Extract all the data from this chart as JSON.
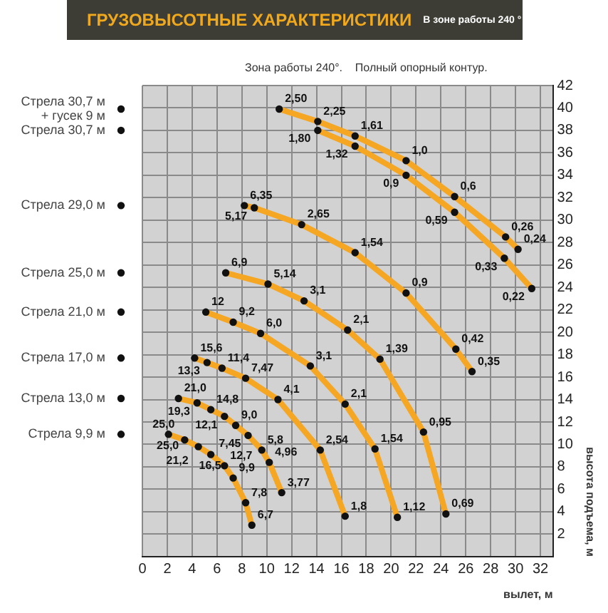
{
  "chart_data": {
    "type": "line",
    "title": "ГРУЗОВЫСОТНЫЕ ХАРАКТЕРИСТИКИ",
    "subtitle": "В зоне работы 240 °",
    "xlabel": "вылет, м",
    "ylabel": "высота подъема, м",
    "annotations": [
      "Зона работы 240°.    Полный опорный контур.",
      {
        "text": "2,50",
        "x": 11.0,
        "y": 39.9
      },
      {
        "text": "2,25",
        "x": 14.1,
        "y": 38.8
      },
      {
        "text": "1,61",
        "x": 17.1,
        "y": 37.5
      },
      {
        "text": "1,0",
        "x": 21.2,
        "y": 35.3
      },
      {
        "text": "0,6",
        "x": 25.1,
        "y": 32.1
      },
      {
        "text": "0,26",
        "x": 29.2,
        "y": 28.5
      },
      {
        "text": "0,24",
        "x": 30.2,
        "y": 27.4
      },
      {
        "text": "1,80",
        "x": 14.1,
        "y": 38.0
      },
      {
        "text": "1,32",
        "x": 17.1,
        "y": 36.6
      },
      {
        "text": "0,9",
        "x": 21.2,
        "y": 34.0
      },
      {
        "text": "0,59",
        "x": 25.1,
        "y": 30.7
      },
      {
        "text": "0,33",
        "x": 29.1,
        "y": 26.6
      },
      {
        "text": "0,22",
        "x": 31.3,
        "y": 23.9
      },
      {
        "text": "6,35",
        "x": 8.2,
        "y": 31.3
      },
      {
        "text": "5,17",
        "x": 9.0,
        "y": 31.1
      },
      {
        "text": "2,65",
        "x": 12.8,
        "y": 29.6
      },
      {
        "text": "1,54",
        "x": 17.1,
        "y": 27.1
      },
      {
        "text": "0,9",
        "x": 21.2,
        "y": 23.5
      },
      {
        "text": "0,42",
        "x": 25.2,
        "y": 18.5
      },
      {
        "text": "0,35",
        "x": 26.5,
        "y": 16.5
      },
      {
        "text": "6,9",
        "x": 6.7,
        "y": 25.3
      },
      {
        "text": "5,14",
        "x": 10.1,
        "y": 24.3
      },
      {
        "text": "3,1",
        "x": 13.0,
        "y": 22.8
      },
      {
        "text": "2,1",
        "x": 16.5,
        "y": 20.2
      },
      {
        "text": "1,39",
        "x": 19.1,
        "y": 17.6
      },
      {
        "text": "0,95",
        "x": 22.6,
        "y": 11.1
      },
      {
        "text": "0,69",
        "x": 24.4,
        "y": 3.8
      },
      {
        "text": "12",
        "x": 5.1,
        "y": 21.8
      },
      {
        "text": "9,2",
        "x": 7.3,
        "y": 20.9
      },
      {
        "text": "6,0",
        "x": 9.5,
        "y": 19.9
      },
      {
        "text": "3,1",
        "x": 13.5,
        "y": 17.0
      },
      {
        "text": "2,1",
        "x": 16.3,
        "y": 13.6
      },
      {
        "text": "1,54",
        "x": 18.7,
        "y": 9.6
      },
      {
        "text": "1,12",
        "x": 20.5,
        "y": 3.5
      },
      {
        "text": "15,6",
        "x": 4.2,
        "y": 17.7
      },
      {
        "text": "13,3",
        "x": 5.2,
        "y": 17.3
      },
      {
        "text": "11,4",
        "x": 6.4,
        "y": 16.8
      },
      {
        "text": "7,47",
        "x": 8.3,
        "y": 15.9
      },
      {
        "text": "4,1",
        "x": 10.9,
        "y": 14.0
      },
      {
        "text": "2,54",
        "x": 14.3,
        "y": 9.5
      },
      {
        "text": "1,8",
        "x": 16.3,
        "y": 3.6
      },
      {
        "text": "21,0",
        "x": 2.9,
        "y": 14.1
      },
      {
        "text": "19,3",
        "x": 4.4,
        "y": 13.7
      },
      {
        "text": "14,8",
        "x": 5.5,
        "y": 13.1
      },
      {
        "text": "12,1",
        "x": 6.6,
        "y": 12.5
      },
      {
        "text": "9,0",
        "x": 7.5,
        "y": 11.7
      },
      {
        "text": "7,45",
        "x": 8.5,
        "y": 10.8
      },
      {
        "text": "5,8",
        "x": 9.6,
        "y": 9.5
      },
      {
        "text": "4,96",
        "x": 10.2,
        "y": 8.4
      },
      {
        "text": "3,77",
        "x": 11.2,
        "y": 5.7
      },
      {
        "text": "25,0",
        "x": 2.1,
        "y": 10.9
      },
      {
        "text": "25,0",
        "x": 3.4,
        "y": 10.4
      },
      {
        "text": "21,2",
        "x": 4.5,
        "y": 9.8
      },
      {
        "text": "16,5",
        "x": 5.5,
        "y": 9.1
      },
      {
        "text": "12,7",
        "x": 6.6,
        "y": 8.1
      },
      {
        "text": "9,9",
        "x": 7.3,
        "y": 7.0
      },
      {
        "text": "7,8",
        "x": 8.3,
        "y": 4.8
      },
      {
        "text": "6,7",
        "x": 8.8,
        "y": 2.8
      }
    ],
    "xlim": [
      0,
      33
    ],
    "ylim": [
      0,
      42
    ],
    "xticks": [
      0,
      2,
      4,
      6,
      8,
      10,
      12,
      14,
      16,
      18,
      20,
      22,
      24,
      26,
      28,
      30,
      32
    ],
    "yticks": [
      2,
      4,
      6,
      8,
      10,
      12,
      14,
      16,
      18,
      20,
      22,
      24,
      26,
      28,
      30,
      32,
      34,
      36,
      38,
      40,
      42
    ],
    "grid": true,
    "legend": "left",
    "marker": "circle",
    "line_style": "solid",
    "series": [
      {
        "name": "Стрела 30,7 м + гусек 9 м",
        "color": "#f5a623",
        "x": [
          11.0,
          14.1,
          17.1,
          21.2,
          25.1,
          29.2,
          30.2
        ],
        "values": [
          39.9,
          38.8,
          37.5,
          35.3,
          32.1,
          28.5,
          27.4
        ]
      },
      {
        "name": "Стрела 30,7 м",
        "color": "#f5a623",
        "x": [
          14.1,
          17.1,
          21.2,
          25.1,
          29.1,
          31.3
        ],
        "values": [
          38.0,
          36.6,
          34.0,
          30.7,
          26.6,
          23.9
        ]
      },
      {
        "name": "Стрела 29,0 м",
        "color": "#f5a623",
        "x": [
          8.2,
          9.0,
          12.8,
          17.1,
          21.2,
          25.2,
          26.5
        ],
        "values": [
          31.3,
          31.1,
          29.6,
          27.1,
          23.5,
          18.5,
          16.5
        ]
      },
      {
        "name": "Стрела 25,0 м",
        "color": "#f5a623",
        "x": [
          6.7,
          10.1,
          13.0,
          16.5,
          19.1,
          22.6,
          24.4
        ],
        "values": [
          25.3,
          24.3,
          22.8,
          20.2,
          17.6,
          11.1,
          3.8
        ]
      },
      {
        "name": "Стрела 21,0 м",
        "color": "#f5a623",
        "x": [
          5.1,
          7.3,
          9.5,
          13.5,
          16.3,
          18.7,
          20.5
        ],
        "values": [
          21.8,
          20.9,
          19.9,
          17.0,
          13.6,
          9.6,
          3.5
        ]
      },
      {
        "name": "Стрела 17,0 м",
        "color": "#f5a623",
        "x": [
          4.2,
          5.2,
          6.4,
          8.3,
          10.9,
          14.3,
          16.3
        ],
        "values": [
          17.7,
          17.3,
          16.8,
          15.9,
          14.0,
          9.5,
          3.6
        ]
      },
      {
        "name": "Стрела 13,0 м",
        "color": "#f5a623",
        "x": [
          2.9,
          4.4,
          5.5,
          6.6,
          7.5,
          8.5,
          9.6,
          10.2,
          11.2
        ],
        "values": [
          14.1,
          13.7,
          13.1,
          12.5,
          11.7,
          10.8,
          9.5,
          8.4,
          5.7
        ]
      },
      {
        "name": "Стрела 9,9 м",
        "color": "#f5a623",
        "x": [
          2.1,
          3.4,
          4.5,
          5.5,
          6.6,
          7.3,
          8.3,
          8.8
        ],
        "values": [
          10.9,
          10.4,
          9.8,
          9.1,
          8.1,
          7.0,
          4.8,
          2.8
        ]
      }
    ]
  }
}
